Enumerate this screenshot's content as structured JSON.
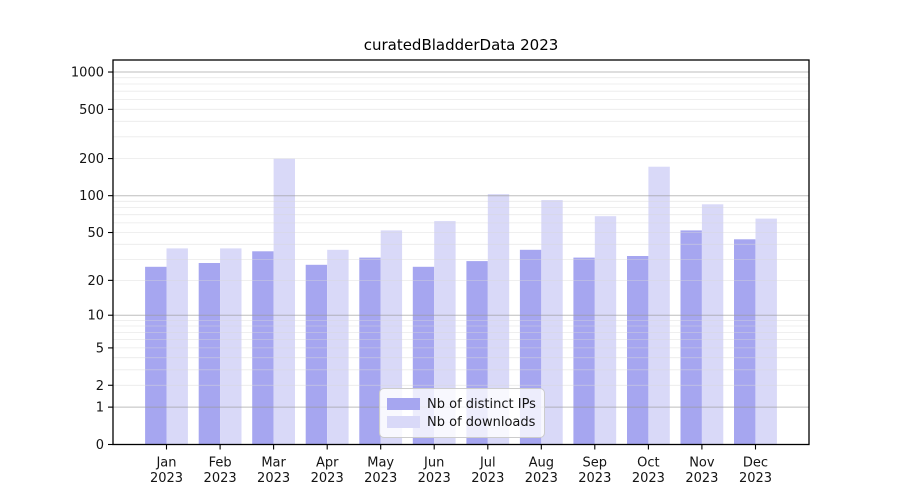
{
  "title": "curatedBladderData 2023",
  "chart_data": {
    "type": "bar",
    "title": "curatedBladderData 2023",
    "categories": [
      "Jan",
      "Feb",
      "Mar",
      "Apr",
      "May",
      "Jun",
      "Jul",
      "Aug",
      "Sep",
      "Oct",
      "Nov",
      "Dec"
    ],
    "year_label": "2023",
    "series": [
      {
        "name": "Nb of distinct IPs",
        "color": "#a6a6f0",
        "values": [
          26,
          28,
          35,
          27,
          31,
          26,
          29,
          36,
          31,
          32,
          52,
          44
        ]
      },
      {
        "name": "Nb of downloads",
        "color": "#d9d9f8",
        "values": [
          37,
          37,
          200,
          36,
          52,
          62,
          103,
          92,
          68,
          172,
          85,
          65
        ]
      }
    ],
    "xlabel": "",
    "ylabel": "",
    "yscale": "log1p",
    "yticks": [
      0,
      1,
      2,
      5,
      10,
      20,
      50,
      100,
      200,
      500,
      1000
    ],
    "ylim": [
      0,
      1250
    ],
    "grid_major": [
      1,
      10,
      100,
      1000
    ],
    "grid_minor_decades": [
      1,
      10,
      100
    ],
    "legend_position": "lower center",
    "colors": {
      "axis": "#000000",
      "major_grid": "#9a9a9a",
      "minor_grid": "#d9d9d9",
      "tick_label": "#141414"
    }
  }
}
